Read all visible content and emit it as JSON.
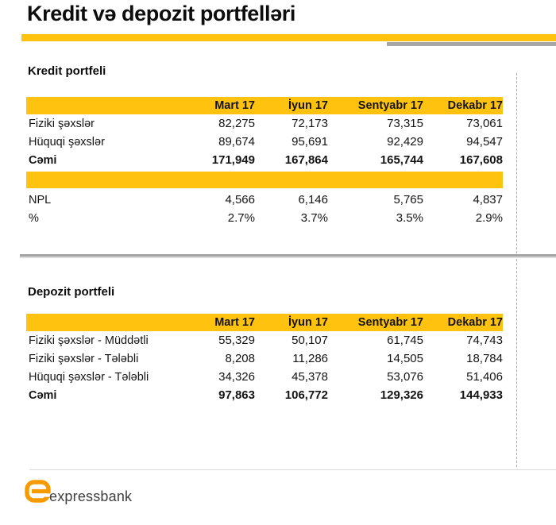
{
  "page": {
    "title": "Kredit və depozit portfelləri"
  },
  "colors": {
    "accent_yellow": "#FFC20E",
    "top_gray_bar": "#A6A6A6",
    "logo_orange": "#F59B00",
    "logo_text_gray": "#3E3E3E"
  },
  "columns": [
    "Mart 17",
    "İyun 17",
    "Sentyabr 17",
    "Dekabr 17"
  ],
  "credit": {
    "section_title": "Kredit portfeli",
    "rows": [
      {
        "label": "Fiziki şəxslər",
        "values": [
          "82,275",
          "72,173",
          "73,315",
          "73,061"
        ],
        "bold": false
      },
      {
        "label": "Hüquqi şəxslər",
        "values": [
          "89,674",
          "95,691",
          "92,429",
          "94,547"
        ],
        "bold": false
      },
      {
        "label": "Cəmi",
        "values": [
          "171,949",
          "167,864",
          "165,744",
          "167,608"
        ],
        "bold": true
      }
    ],
    "npl_rows": [
      {
        "label": "NPL",
        "values": [
          "4,566",
          "6,146",
          "5,765",
          "4,837"
        ],
        "bold": false
      },
      {
        "label": "%",
        "values": [
          "2.7%",
          "3.7%",
          "3.5%",
          "2.9%"
        ],
        "bold": false
      }
    ]
  },
  "deposit": {
    "section_title": "Depozit portfeli",
    "rows": [
      {
        "label": "Fiziki şəxslər - Müddətli",
        "values": [
          "55,329",
          "50,107",
          "61,745",
          "74,743"
        ],
        "bold": false
      },
      {
        "label": "Fiziki şəxslər - Tələbli",
        "values": [
          "8,208",
          "11,286",
          "14,505",
          "18,784"
        ],
        "bold": false
      },
      {
        "label": "Hüquqi şəxslər - Tələbli",
        "values": [
          "34,326",
          "45,378",
          "53,076",
          "51,406"
        ],
        "bold": false
      },
      {
        "label": "Cəmi",
        "values": [
          "97,863",
          "106,772",
          "129,326",
          "144,933"
        ],
        "bold": true
      }
    ]
  },
  "logo": {
    "text": "expressbank"
  }
}
